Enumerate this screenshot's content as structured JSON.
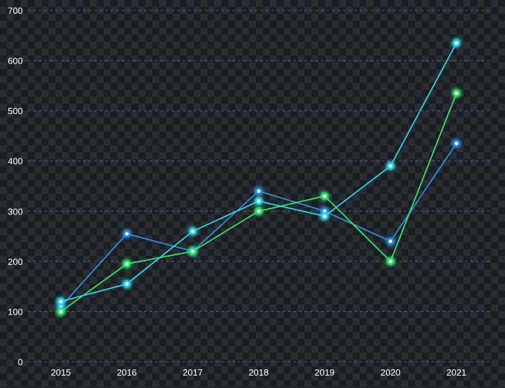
{
  "chart_data": {
    "type": "line",
    "categories": [
      "2015",
      "2016",
      "2017",
      "2018",
      "2019",
      "2020",
      "2021"
    ],
    "ylim": [
      0,
      700
    ],
    "yticks": [
      0,
      100,
      200,
      300,
      400,
      500,
      600,
      700
    ],
    "grid": true,
    "series": [
      {
        "color": "#2a8fe0",
        "values": [
          110,
          255,
          220,
          340,
          300,
          240,
          435
        ]
      },
      {
        "color": "#2ee86a",
        "values": [
          100,
          195,
          220,
          300,
          330,
          200,
          535
        ]
      },
      {
        "color": "#25d9ee",
        "values": [
          120,
          155,
          260,
          320,
          290,
          390,
          635
        ]
      }
    ]
  }
}
